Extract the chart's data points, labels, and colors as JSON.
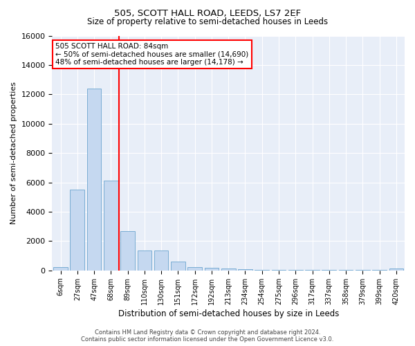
{
  "title1": "505, SCOTT HALL ROAD, LEEDS, LS7 2EF",
  "title2": "Size of property relative to semi-detached houses in Leeds",
  "xlabel": "Distribution of semi-detached houses by size in Leeds",
  "ylabel": "Number of semi-detached properties",
  "bar_labels": [
    "6sqm",
    "27sqm",
    "47sqm",
    "68sqm",
    "89sqm",
    "110sqm",
    "130sqm",
    "151sqm",
    "172sqm",
    "192sqm",
    "213sqm",
    "234sqm",
    "254sqm",
    "275sqm",
    "296sqm",
    "317sqm",
    "337sqm",
    "358sqm",
    "379sqm",
    "399sqm",
    "420sqm"
  ],
  "bar_values": [
    250,
    5500,
    12400,
    6100,
    2700,
    1350,
    1350,
    600,
    250,
    175,
    125,
    75,
    50,
    50,
    50,
    50,
    50,
    50,
    50,
    50,
    125
  ],
  "bar_color": "#c5d8f0",
  "bar_edge_color": "#7aadd4",
  "annotation_title": "505 SCOTT HALL ROAD: 84sqm",
  "annotation_smaller": "← 50% of semi-detached houses are smaller (14,690)",
  "annotation_larger": "48% of semi-detached houses are larger (14,178) →",
  "ylim": [
    0,
    16000
  ],
  "yticks": [
    0,
    2000,
    4000,
    6000,
    8000,
    10000,
    12000,
    14000,
    16000
  ],
  "background_color": "#e8eef8",
  "grid_color": "#ffffff",
  "footer1": "Contains HM Land Registry data © Crown copyright and database right 2024.",
  "footer2": "Contains public sector information licensed under the Open Government Licence v3.0."
}
